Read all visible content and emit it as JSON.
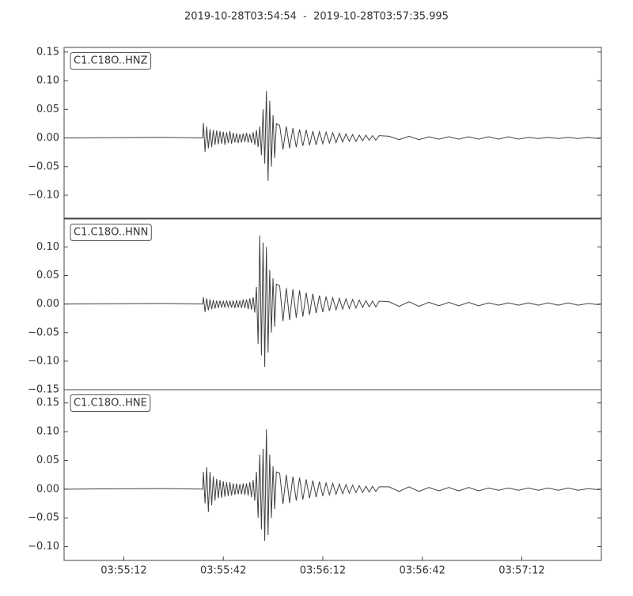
{
  "chart_data": [
    {
      "type": "line",
      "title": "2019-10-28T03:54:54  -  2019-10-28T03:57:35.995",
      "x": [
        0,
        30,
        41.8,
        42,
        42.5,
        43,
        43.5,
        44,
        44.5,
        45,
        45.5,
        46,
        46.5,
        47,
        47.5,
        48,
        48.5,
        49,
        49.5,
        50,
        50.5,
        51,
        51.5,
        52,
        52.5,
        53,
        53.5,
        54,
        54.5,
        55,
        55.5,
        56,
        56.5,
        57,
        57.5,
        58,
        58.5,
        59,
        59.5,
        60,
        60.5,
        61,
        61.5,
        62,
        62.5,
        63,
        63.5,
        64,
        65,
        66,
        67,
        68,
        69,
        70,
        71,
        72,
        73,
        74,
        75,
        76,
        77,
        78,
        79,
        80,
        81,
        82,
        83,
        84,
        85,
        86,
        87,
        88,
        89,
        90,
        91,
        92,
        93,
        94,
        95,
        98,
        101,
        104,
        107,
        110,
        113,
        116,
        119,
        122,
        125,
        128,
        131,
        134,
        137,
        140,
        143,
        146,
        149,
        152,
        155,
        158,
        161,
        162
      ],
      "series": [
        {
          "name": "C1.C18O..HNZ",
          "color": "#404040",
          "values": [
            0,
            0.001,
            0,
            0.026,
            -0.024,
            0.02,
            -0.018,
            0.015,
            -0.016,
            0.014,
            -0.012,
            0.013,
            -0.011,
            0.012,
            -0.01,
            0.011,
            -0.012,
            0.01,
            -0.009,
            0.012,
            -0.01,
            0.009,
            -0.008,
            0.008,
            -0.009,
            0.007,
            -0.008,
            0.008,
            -0.007,
            0.009,
            -0.008,
            0.007,
            -0.009,
            0.01,
            -0.012,
            0.014,
            -0.016,
            0.02,
            -0.03,
            0.05,
            -0.045,
            0.082,
            -0.075,
            0.065,
            -0.05,
            0.04,
            -0.035,
            0.025,
            0.022,
            -0.02,
            0.02,
            -0.018,
            0.017,
            -0.016,
            0.015,
            -0.014,
            0.014,
            -0.013,
            0.012,
            -0.012,
            0.011,
            -0.01,
            0.01,
            -0.009,
            0.009,
            -0.008,
            0.008,
            -0.007,
            0.007,
            -0.006,
            0.006,
            -0.006,
            0.005,
            -0.005,
            0.005,
            -0.004,
            0.004,
            -0.004,
            0.004,
            0.003,
            -0.003,
            0.003,
            -0.003,
            0.002,
            -0.002,
            0.002,
            -0.002,
            0.002,
            -0.002,
            0.002,
            -0.002,
            0.002,
            -0.002,
            0.001,
            -0.001,
            0.001,
            -0.001,
            0.001,
            -0.001,
            0.001,
            -0.001,
            0
          ]
        }
      ],
      "xlim": [
        0,
        161.995
      ],
      "ylim": [
        -0.14,
        0.158
      ],
      "yticks": [
        {
          "value": -0.1,
          "label": "−0.10"
        },
        {
          "value": -0.05,
          "label": "−0.05"
        },
        {
          "value": 0,
          "label": "0.00"
        },
        0.05,
        {
          "value": 0.1,
          "label": "0.10"
        },
        0.15
      ]
    },
    {
      "type": "line",
      "x": [
        0,
        30,
        41.8,
        42,
        42.5,
        43,
        43.5,
        44,
        44.5,
        45,
        45.5,
        46,
        46.5,
        47,
        47.5,
        48,
        48.5,
        49,
        49.5,
        50,
        50.5,
        51,
        51.5,
        52,
        52.5,
        53,
        53.5,
        54,
        54.5,
        55,
        55.5,
        56,
        56.5,
        57,
        57.5,
        58,
        58.5,
        59,
        59.5,
        60,
        60.5,
        61,
        61.5,
        62,
        62.5,
        63,
        63.5,
        64,
        65,
        66,
        67,
        68,
        69,
        70,
        71,
        72,
        73,
        74,
        75,
        76,
        77,
        78,
        79,
        80,
        81,
        82,
        83,
        84,
        85,
        86,
        87,
        88,
        89,
        90,
        91,
        92,
        93,
        94,
        95,
        98,
        101,
        104,
        107,
        110,
        113,
        116,
        119,
        122,
        125,
        128,
        131,
        134,
        137,
        140,
        143,
        146,
        149,
        152,
        155,
        158,
        161,
        162
      ],
      "series": [
        {
          "name": "C1.C18O..HNN",
          "color": "#404040",
          "values": [
            0,
            0.001,
            0,
            0.012,
            -0.014,
            0.01,
            -0.011,
            0.008,
            -0.009,
            0.007,
            -0.008,
            0.006,
            -0.007,
            0.006,
            -0.006,
            0.005,
            -0.006,
            0.006,
            -0.005,
            0.005,
            -0.006,
            0.006,
            -0.007,
            0.007,
            -0.006,
            0.006,
            -0.007,
            0.008,
            -0.007,
            0.008,
            -0.009,
            0.01,
            -0.01,
            0.012,
            -0.015,
            0.03,
            -0.07,
            0.12,
            -0.09,
            0.108,
            -0.11,
            0.1,
            -0.085,
            0.06,
            -0.05,
            0.045,
            -0.04,
            0.035,
            0.032,
            -0.03,
            0.028,
            -0.028,
            0.026,
            -0.024,
            0.024,
            -0.022,
            0.02,
            -0.019,
            0.018,
            -0.016,
            0.015,
            -0.014,
            0.013,
            -0.012,
            0.011,
            -0.01,
            0.01,
            -0.009,
            0.009,
            -0.008,
            0.008,
            -0.007,
            0.007,
            -0.006,
            0.006,
            -0.005,
            0.005,
            -0.005,
            0.005,
            0.004,
            -0.004,
            0.004,
            -0.004,
            0.003,
            -0.003,
            0.003,
            -0.003,
            0.003,
            -0.003,
            0.002,
            -0.002,
            0.002,
            -0.002,
            0.002,
            -0.002,
            0.002,
            -0.002,
            0.002,
            -0.002,
            0.001,
            -0.001,
            0
          ]
        }
      ],
      "xlim": [
        0,
        161.995
      ],
      "ylim": [
        -0.15,
        0.149
      ],
      "yticks": [
        {
          "value": -0.15,
          "label": "−0.15"
        },
        {
          "value": -0.1,
          "label": "−0.10"
        },
        {
          "value": -0.05,
          "label": "−0.05"
        },
        {
          "value": 0,
          "label": "0.00"
        },
        0.05,
        {
          "value": 0.1,
          "label": "0.10"
        }
      ]
    },
    {
      "type": "line",
      "x": [
        0,
        30,
        41.8,
        42,
        42.5,
        43,
        43.5,
        44,
        44.5,
        45,
        45.5,
        46,
        46.5,
        47,
        47.5,
        48,
        48.5,
        49,
        49.5,
        50,
        50.5,
        51,
        51.5,
        52,
        52.5,
        53,
        53.5,
        54,
        54.5,
        55,
        55.5,
        56,
        56.5,
        57,
        57.5,
        58,
        58.5,
        59,
        59.5,
        60,
        60.5,
        61,
        61.5,
        62,
        62.5,
        63,
        63.5,
        64,
        65,
        66,
        67,
        68,
        69,
        70,
        71,
        72,
        73,
        74,
        75,
        76,
        77,
        78,
        79,
        80,
        81,
        82,
        83,
        84,
        85,
        86,
        87,
        88,
        89,
        90,
        91,
        92,
        93,
        94,
        95,
        98,
        101,
        104,
        107,
        110,
        113,
        116,
        119,
        122,
        125,
        128,
        131,
        134,
        137,
        140,
        143,
        146,
        149,
        152,
        155,
        158,
        161,
        162
      ],
      "series": [
        {
          "name": "C1.C18O..HNE",
          "color": "#404040",
          "values": [
            0,
            0.001,
            0,
            0.03,
            -0.025,
            0.038,
            -0.04,
            0.03,
            -0.028,
            0.022,
            -0.02,
            0.018,
            -0.016,
            0.016,
            -0.015,
            0.014,
            -0.013,
            0.012,
            -0.012,
            0.012,
            -0.011,
            0.01,
            -0.01,
            0.01,
            -0.009,
            0.009,
            -0.009,
            0.01,
            -0.01,
            0.01,
            -0.011,
            0.012,
            -0.014,
            0.016,
            -0.02,
            0.03,
            -0.05,
            0.06,
            -0.07,
            0.07,
            -0.09,
            0.104,
            -0.08,
            0.06,
            -0.05,
            0.04,
            -0.035,
            0.03,
            0.028,
            -0.026,
            0.025,
            -0.024,
            0.022,
            -0.02,
            0.02,
            -0.018,
            0.017,
            -0.016,
            0.015,
            -0.014,
            0.013,
            -0.012,
            0.011,
            -0.01,
            0.01,
            -0.009,
            0.009,
            -0.008,
            0.008,
            -0.007,
            0.007,
            -0.006,
            0.006,
            -0.006,
            0.005,
            -0.005,
            0.005,
            -0.004,
            0.004,
            0.004,
            -0.004,
            0.004,
            -0.004,
            0.003,
            -0.003,
            0.003,
            -0.003,
            0.003,
            -0.003,
            0.002,
            -0.002,
            0.002,
            -0.002,
            0.002,
            -0.002,
            0.002,
            -0.002,
            0.002,
            -0.002,
            0.001,
            -0.001,
            0
          ]
        }
      ],
      "xlim": [
        0,
        161.995
      ],
      "ylim": [
        -0.124,
        0.173
      ],
      "yticks": [
        {
          "value": -0.1,
          "label": "−0.10"
        },
        {
          "value": -0.05,
          "label": "−0.05"
        },
        {
          "value": 0,
          "label": "0.00"
        },
        0.05,
        {
          "value": 0.1,
          "label": "0.10"
        },
        0.15
      ],
      "xticks": [
        {
          "value": 18,
          "label": "03:55:12"
        },
        {
          "value": 48,
          "label": "03:55:42"
        },
        {
          "value": 78,
          "label": "03:56:12"
        },
        {
          "value": 108,
          "label": "03:56:42"
        },
        {
          "value": 138,
          "label": "03:57:12"
        }
      ]
    }
  ]
}
